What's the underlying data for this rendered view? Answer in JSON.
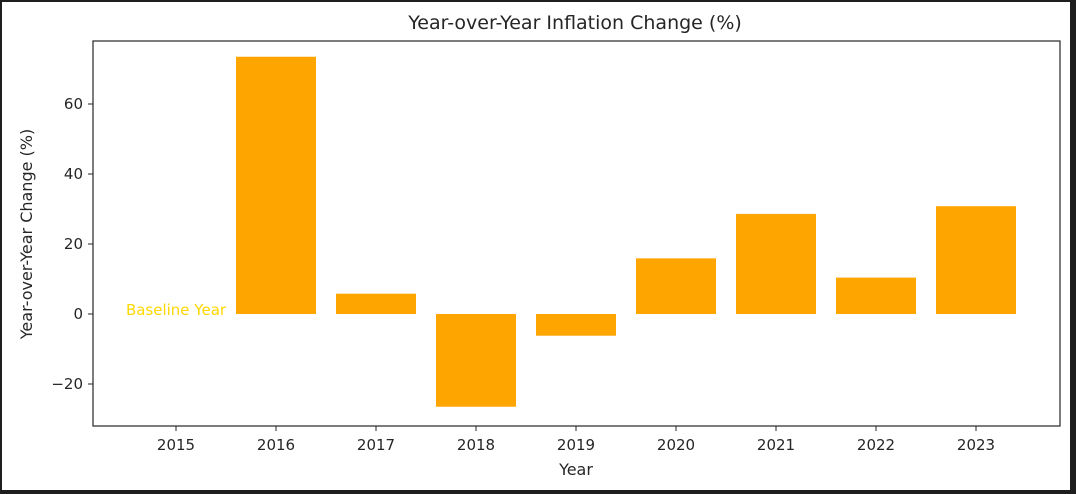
{
  "chart_data": {
    "type": "bar",
    "title": "Year-over-Year Inflation Change (%)",
    "xlabel": "Year",
    "ylabel": "Year-over-Year Change (%)",
    "categories": [
      "2015",
      "2016",
      "2017",
      "2018",
      "2019",
      "2020",
      "2021",
      "2022",
      "2023"
    ],
    "values": [
      0,
      73.5,
      5.8,
      -26.5,
      -6.2,
      15.9,
      28.6,
      10.4,
      30.8
    ],
    "ylim": [
      -32,
      78
    ],
    "yticks": [
      -20,
      0,
      20,
      40,
      60
    ],
    "ytick_labels": [
      "−20",
      "0",
      "20",
      "40",
      "60"
    ],
    "bar_color": "#ffa500",
    "annotation": {
      "text": "Baseline Year",
      "category": "2015",
      "value": 0,
      "color": "#ffd700"
    },
    "grid": false,
    "legend": "none"
  }
}
